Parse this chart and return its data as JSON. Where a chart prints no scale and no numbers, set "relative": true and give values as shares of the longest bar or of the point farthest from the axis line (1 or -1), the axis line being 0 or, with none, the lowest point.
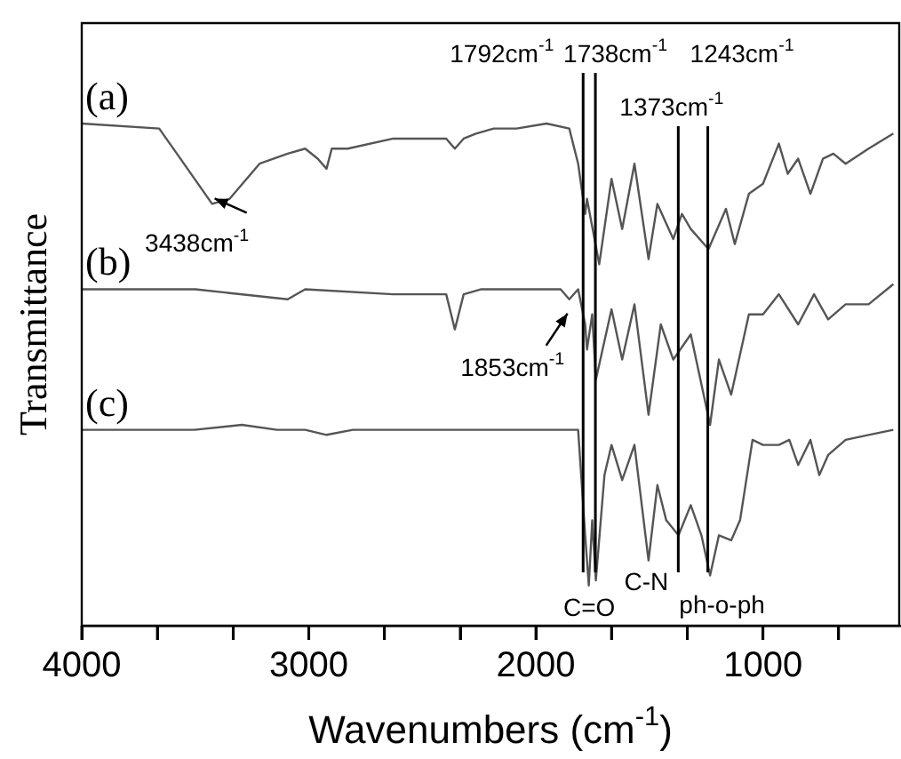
{
  "chart_data": {
    "type": "line",
    "relative": true,
    "xlabel": "Wavenumbers (cm$^{-1}$)",
    "ylabel": "Transmittance",
    "xlim": [
      4000,
      400
    ],
    "xticks": [
      4000,
      {
        "value": 3667,
        "label": null
      },
      {
        "value": 3333,
        "label": null
      },
      3000,
      {
        "value": 2667,
        "label": null
      },
      {
        "value": 2333,
        "label": null
      },
      2000,
      {
        "value": 1667,
        "label": null
      },
      {
        "value": 1333,
        "label": null
      },
      1000,
      {
        "value": 667,
        "label": null
      }
    ],
    "marker": "none",
    "line_style": "solid",
    "tick_labels": "x",
    "series": [
      {
        "name": "(a)",
        "color": "#555555",
        "x": [
          4000,
          3659,
          3581,
          3426,
          3349,
          3217,
          3093,
          3016,
          2961,
          2922,
          2899,
          2829,
          2628,
          2395,
          2357,
          2318,
          2264,
          2186,
          2085,
          1953,
          1853,
          1814,
          1783,
          1775,
          1721,
          1667,
          1620,
          1566,
          1504,
          1465,
          1395,
          1357,
          1318,
          1240,
          1163,
          1124,
          1062,
          1000,
          930,
          891,
          845,
          791,
          736,
          690,
          636,
          535,
          426
        ],
        "values": [
          1.0,
          0.99,
          0.94,
          0.84,
          0.85,
          0.92,
          0.94,
          0.95,
          0.93,
          0.91,
          0.95,
          0.95,
          0.97,
          0.97,
          0.95,
          0.97,
          0.98,
          0.99,
          0.99,
          1.0,
          0.99,
          0.92,
          0.82,
          0.85,
          0.72,
          0.89,
          0.79,
          0.92,
          0.73,
          0.84,
          0.77,
          0.82,
          0.79,
          0.75,
          0.83,
          0.76,
          0.86,
          0.88,
          0.96,
          0.9,
          0.93,
          0.86,
          0.93,
          0.94,
          0.92,
          0.95,
          0.98
        ]
      },
      {
        "name": "(b)",
        "color": "#555555",
        "x": [
          4000,
          3500,
          3093,
          3016,
          2628,
          2395,
          2357,
          2318,
          2240,
          2085,
          1891,
          1853,
          1814,
          1783,
          1775,
          1752,
          1736,
          1667,
          1620,
          1566,
          1504,
          1450,
          1395,
          1318,
          1233,
          1194,
          1140,
          1062,
          1000,
          930,
          845,
          775,
          713,
          636,
          535,
          426
        ],
        "values": [
          0.67,
          0.67,
          0.65,
          0.67,
          0.66,
          0.66,
          0.59,
          0.66,
          0.67,
          0.67,
          0.67,
          0.65,
          0.67,
          0.6,
          0.55,
          0.62,
          0.49,
          0.63,
          0.53,
          0.64,
          0.42,
          0.6,
          0.53,
          0.58,
          0.4,
          0.53,
          0.46,
          0.62,
          0.62,
          0.66,
          0.6,
          0.66,
          0.61,
          0.64,
          0.64,
          0.68
        ]
      },
      {
        "name": "(c)",
        "color": "#555555",
        "x": [
          4000,
          3504,
          3295,
          3140,
          3062,
          3016,
          2922,
          2806,
          2395,
          2357,
          2240,
          1853,
          1814,
          1783,
          1767,
          1752,
          1736,
          1698,
          1667,
          1620,
          1566,
          1504,
          1465,
          1426,
          1372,
          1318,
          1271,
          1233,
          1194,
          1140,
          1101,
          1046,
          1000,
          930,
          884,
          845,
          791,
          752,
          713,
          636,
          535,
          426
        ],
        "values": [
          0.39,
          0.39,
          0.4,
          0.39,
          0.39,
          0.39,
          0.38,
          0.39,
          0.39,
          0.39,
          0.39,
          0.39,
          0.39,
          0.18,
          0.08,
          0.21,
          0.09,
          0.3,
          0.36,
          0.29,
          0.36,
          0.13,
          0.28,
          0.21,
          0.18,
          0.24,
          0.18,
          0.1,
          0.18,
          0.17,
          0.21,
          0.37,
          0.36,
          0.36,
          0.37,
          0.32,
          0.37,
          0.3,
          0.34,
          0.37,
          0.38,
          0.39
        ]
      }
    ],
    "ref_lines": [
      {
        "axis": "x",
        "value": 1792,
        "label": "1792cm$^{-1}$",
        "color": "#000000"
      },
      {
        "axis": "x",
        "value": 1738,
        "label": "1738cm$^{-1}$",
        "color": "#000000"
      },
      {
        "axis": "x",
        "value": 1373,
        "label": "1373cm$^{-1}$",
        "color": "#000000"
      },
      {
        "axis": "x",
        "value": 1243,
        "label": "1243cm$^{-1}$",
        "color": "#000000"
      }
    ],
    "annotations": [
      {
        "text": "3438cm$^{-1}$",
        "x": 3438,
        "y": 0.84
      },
      {
        "text": "1853cm$^{-1}$",
        "x": 1853,
        "y": 0.65
      },
      {
        "text": "C=O",
        "x": 1765,
        "y": 0.08
      },
      {
        "text": "C-N",
        "x": 1373,
        "y": 0.1
      },
      {
        "text": "ph-o-ph",
        "x": 1243,
        "y": 0.1
      }
    ]
  }
}
